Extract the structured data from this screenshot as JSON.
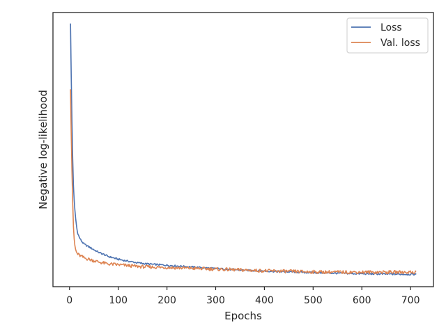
{
  "chart_data": {
    "type": "line",
    "title": "",
    "xlabel": "Epochs",
    "ylabel": "Negative log-likelihood",
    "xlim": [
      -34,
      747
    ],
    "ylim": [
      0,
      1
    ],
    "y_tick_labels_shown": false,
    "x_ticks": [
      0,
      100,
      200,
      300,
      400,
      500,
      600,
      700
    ],
    "x_tick_labels": [
      "0",
      "100",
      "200",
      "300",
      "400",
      "500",
      "600",
      "700"
    ],
    "grid": false,
    "legend": {
      "position": "top-right",
      "entries": [
        "Loss",
        "Val. loss"
      ]
    },
    "series": [
      {
        "name": "Loss",
        "color": "#4c72b0",
        "points": [
          [
            2,
            0.96
          ],
          [
            4,
            0.7
          ],
          [
            6,
            0.5
          ],
          [
            8,
            0.37
          ],
          [
            10,
            0.3
          ],
          [
            13,
            0.24
          ],
          [
            16,
            0.2
          ],
          [
            20,
            0.18
          ],
          [
            25,
            0.165
          ],
          [
            30,
            0.155
          ],
          [
            40,
            0.145
          ],
          [
            50,
            0.135
          ],
          [
            60,
            0.125
          ],
          [
            70,
            0.118
          ],
          [
            80,
            0.11
          ],
          [
            100,
            0.1
          ],
          [
            120,
            0.093
          ],
          [
            140,
            0.087
          ],
          [
            160,
            0.083
          ],
          [
            200,
            0.078
          ],
          [
            250,
            0.072
          ],
          [
            300,
            0.066
          ],
          [
            350,
            0.061
          ],
          [
            400,
            0.057
          ],
          [
            450,
            0.054
          ],
          [
            500,
            0.051
          ],
          [
            550,
            0.049
          ],
          [
            600,
            0.047
          ],
          [
            650,
            0.046
          ],
          [
            700,
            0.045
          ],
          [
            712,
            0.045
          ]
        ]
      },
      {
        "name": "Val. loss",
        "color": "#dd8452",
        "points": [
          [
            2,
            0.72
          ],
          [
            4,
            0.5
          ],
          [
            6,
            0.34
          ],
          [
            8,
            0.22
          ],
          [
            10,
            0.16
          ],
          [
            13,
            0.13
          ],
          [
            16,
            0.12
          ],
          [
            20,
            0.115
          ],
          [
            25,
            0.11
          ],
          [
            30,
            0.105
          ],
          [
            40,
            0.1
          ],
          [
            50,
            0.095
          ],
          [
            60,
            0.09
          ],
          [
            70,
            0.086
          ],
          [
            80,
            0.083
          ],
          [
            100,
            0.08
          ],
          [
            120,
            0.077
          ],
          [
            140,
            0.074
          ],
          [
            160,
            0.072
          ],
          [
            200,
            0.07
          ],
          [
            250,
            0.067
          ],
          [
            300,
            0.064
          ],
          [
            350,
            0.061
          ],
          [
            400,
            0.058
          ],
          [
            450,
            0.056
          ],
          [
            500,
            0.054
          ],
          [
            550,
            0.053
          ],
          [
            600,
            0.053
          ],
          [
            650,
            0.053
          ],
          [
            700,
            0.053
          ],
          [
            712,
            0.053
          ]
        ]
      }
    ]
  }
}
